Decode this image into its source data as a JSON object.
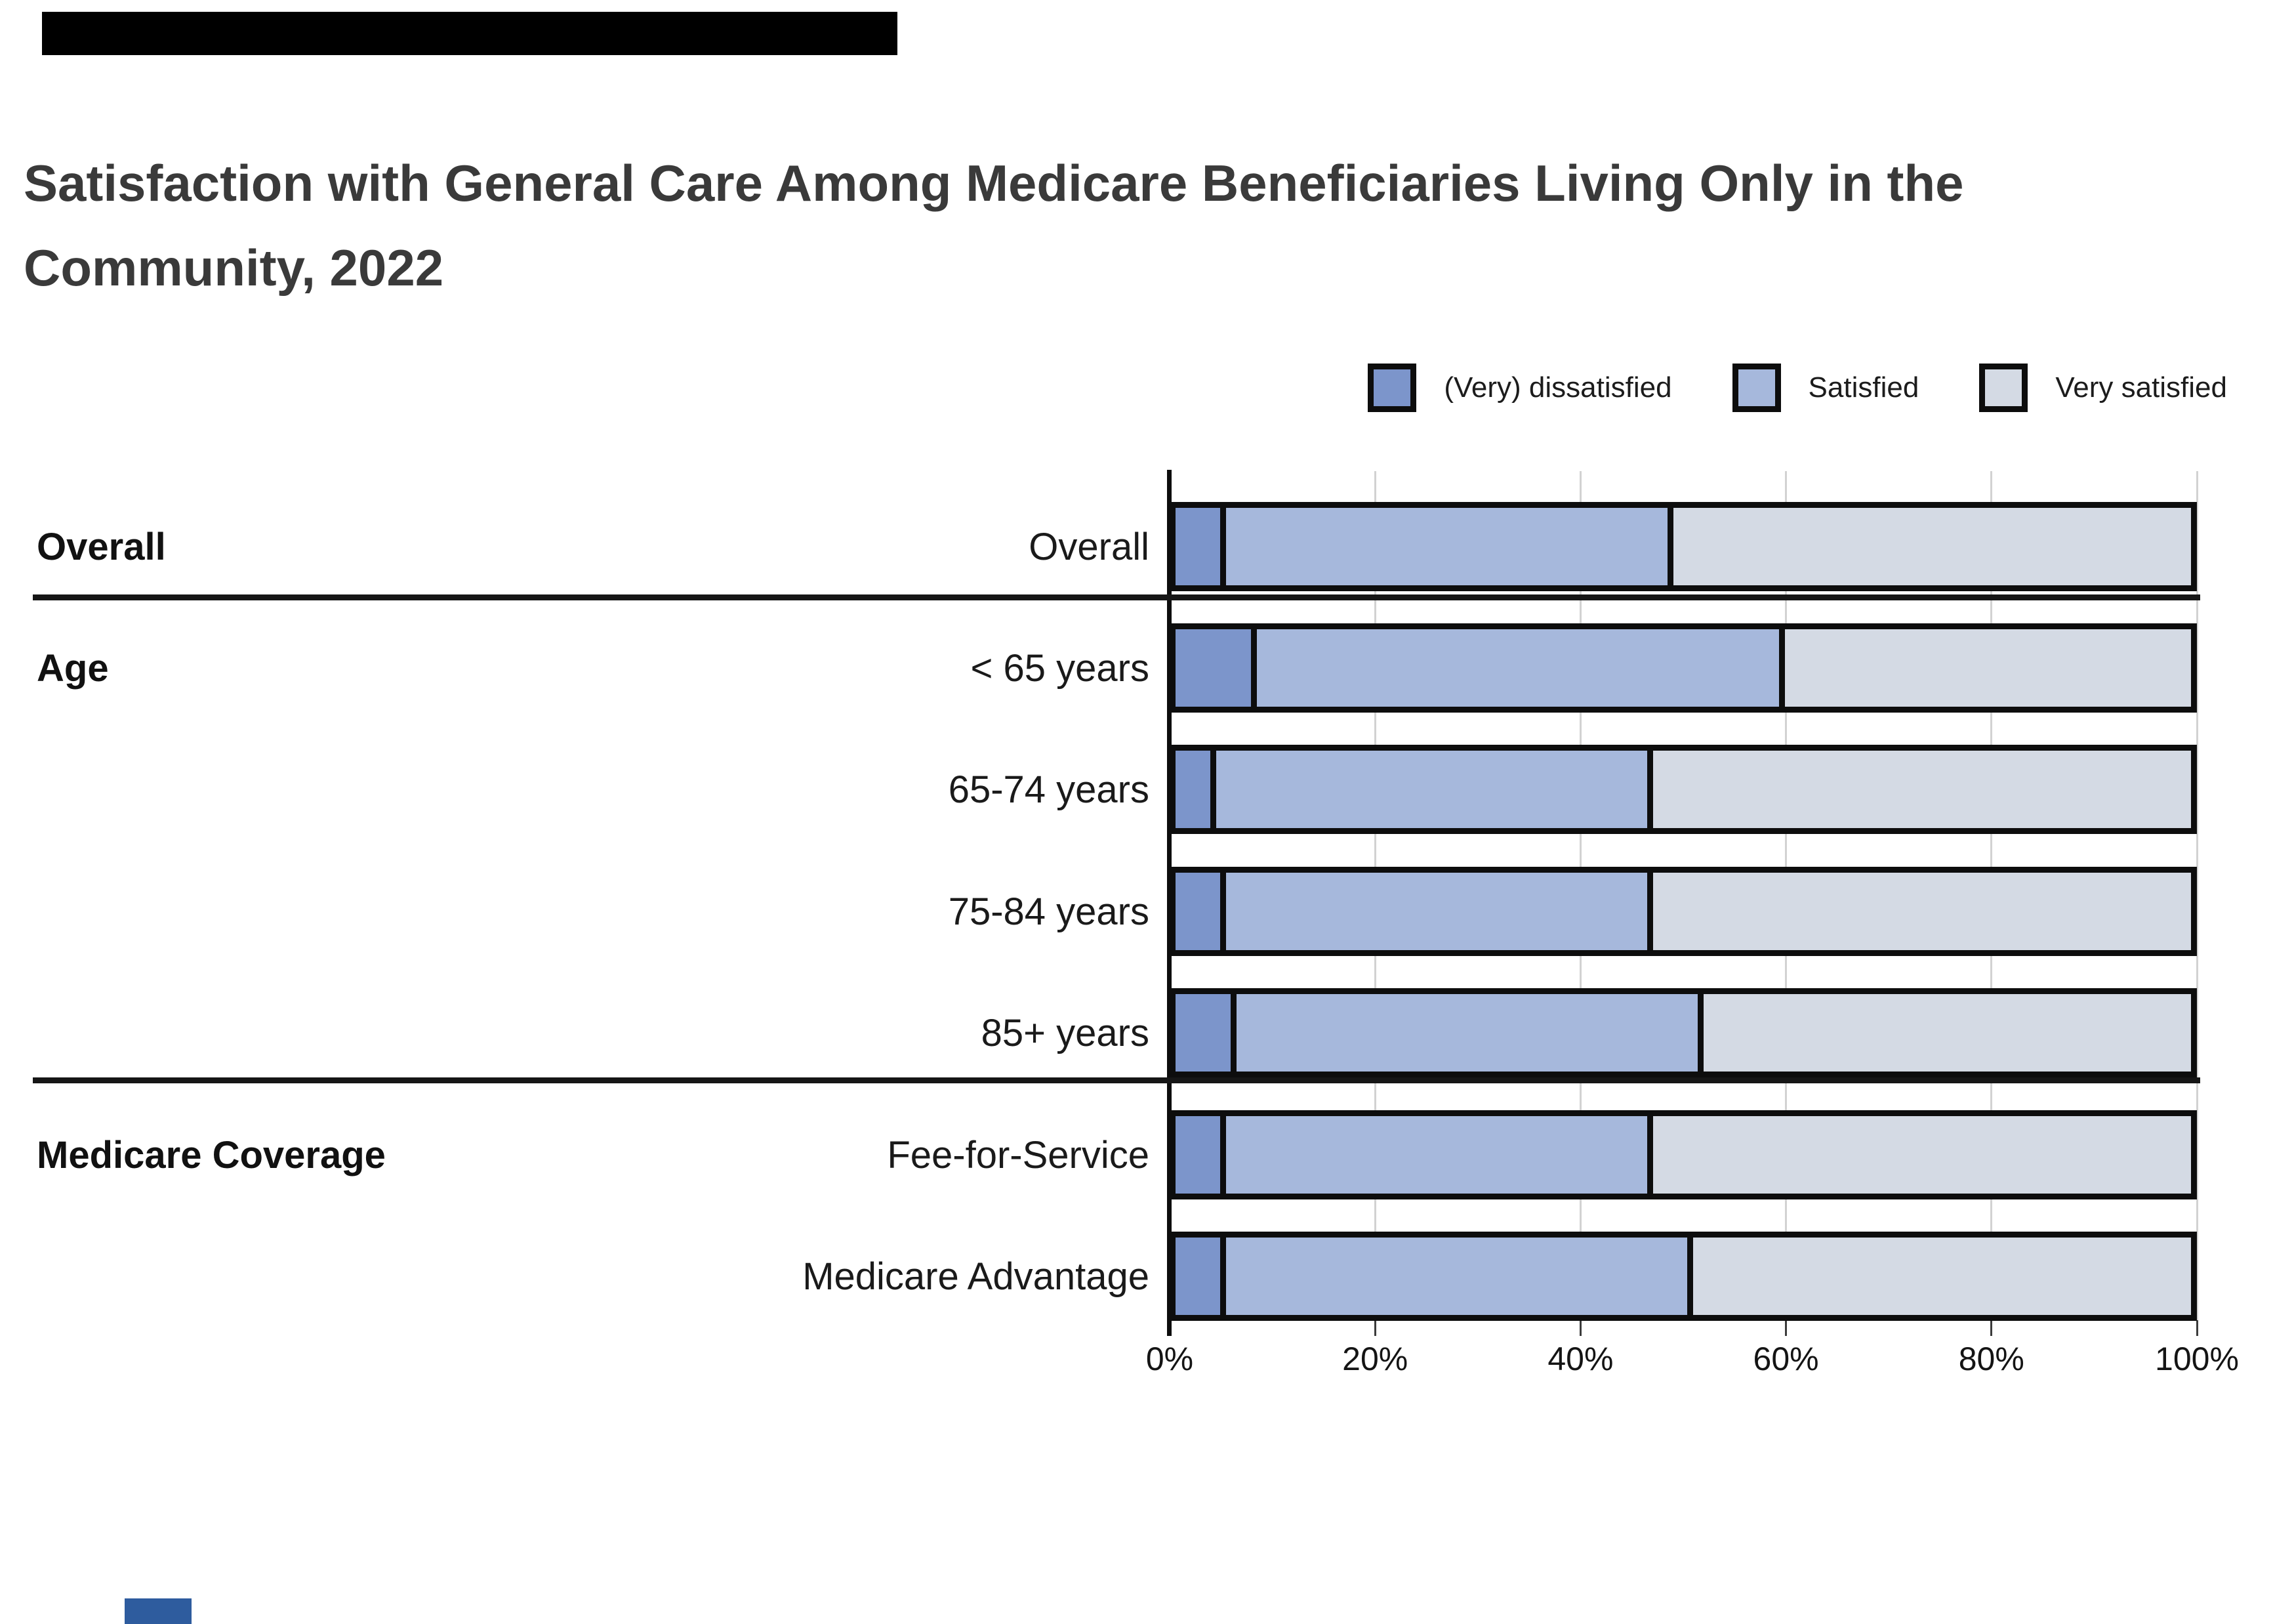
{
  "title": "Satisfaction with General Care Among Medicare Beneficiaries Living Only in the Community, 2022",
  "legend": [
    {
      "label": "(Very) dissatisfied",
      "color": "#7C95CB"
    },
    {
      "label": "Satisfied",
      "color": "#A6B8DC"
    },
    {
      "label": "Very satisfied",
      "color": "#D4DAE4"
    }
  ],
  "chart_data": {
    "type": "bar",
    "stacked": true,
    "orientation": "horizontal",
    "categories": [
      "Overall",
      "< 65 years",
      "65-74 years",
      "75-84 years",
      "85+ years",
      "Fee-for-Service",
      "Medicare Advantage"
    ],
    "groups": [
      {
        "label": "Overall",
        "first_row": 0
      },
      {
        "label": "Age",
        "first_row": 1
      },
      {
        "label": "Medicare Coverage",
        "first_row": 5
      }
    ],
    "series": [
      {
        "name": "(Very) dissatisfied",
        "color": "#7C95CB",
        "values": [
          5,
          8,
          4,
          5,
          6,
          5,
          5
        ]
      },
      {
        "name": "Satisfied",
        "color": "#A6B8DC",
        "values": [
          44,
          52,
          43,
          42,
          46,
          42,
          46
        ]
      },
      {
        "name": "Very satisfied",
        "color": "#D4DAE4",
        "values": [
          51,
          40,
          53,
          53,
          48,
          53,
          49
        ]
      }
    ],
    "x_tick_labels": [
      "0%",
      "20%",
      "40%",
      "60%",
      "80%",
      "100%"
    ],
    "x_tick_values": [
      0,
      20,
      40,
      60,
      80,
      100
    ],
    "xlim": [
      0,
      100
    ],
    "grid": true,
    "legend_position": "top-right"
  },
  "colors": {
    "dissatisfied": "#7C95CB",
    "satisfied": "#A6B8DC",
    "very_satisfied": "#D4DAE4",
    "bar_border": "#0d0d0d",
    "gridline": "#d2d2d2",
    "top_bar": "#000000",
    "bottom_mark": "#2e5c9e"
  }
}
